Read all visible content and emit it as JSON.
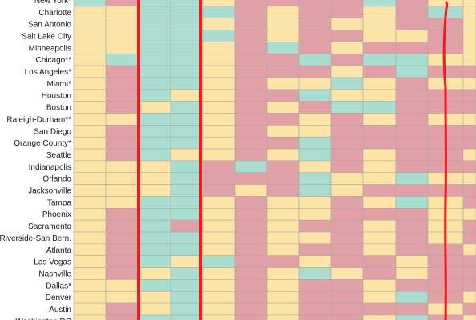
{
  "chart_data": {
    "type": "heatmap",
    "legend": {
      "0": "#fce4a6",
      "1": "#e0a0a6",
      "2": "#a8ddcf"
    },
    "colors": {
      "gridline": "#aaaaaa",
      "annotation": "#ee1c1c"
    },
    "rows": [
      "New York*",
      "Charlotte",
      "San Antonio",
      "Salt Lake City",
      "Minneapolis",
      "Chicago**",
      "Los Angeles*",
      "Miami*",
      "Houston",
      "Boston",
      "Raleigh-Durham**",
      "San Diego",
      "Orange County*",
      "Seattle",
      "Indianapolis",
      "Orlando",
      "Jacksonville",
      "Tampa",
      "Phoenix",
      "Sacramento",
      "Riverside-San Bern.",
      "Atlanta",
      "Las Vegas",
      "Nashville",
      "Dallas*",
      "Denver",
      "Austin",
      "Washington DC"
    ],
    "cells": [
      [
        2,
        1,
        2,
        2,
        0,
        1,
        1,
        1,
        1,
        2,
        1,
        0,
        0
      ],
      [
        0,
        0,
        2,
        2,
        2,
        1,
        0,
        1,
        1,
        0,
        1,
        2,
        0
      ],
      [
        0,
        0,
        2,
        2,
        0,
        1,
        0,
        1,
        0,
        0,
        1,
        1,
        0
      ],
      [
        0,
        0,
        2,
        2,
        2,
        1,
        0,
        1,
        1,
        0,
        0,
        1,
        0
      ],
      [
        0,
        0,
        2,
        2,
        0,
        1,
        2,
        1,
        0,
        1,
        1,
        1,
        0
      ],
      [
        0,
        2,
        2,
        2,
        0,
        1,
        1,
        2,
        1,
        2,
        2,
        0,
        0
      ],
      [
        0,
        1,
        2,
        2,
        0,
        1,
        1,
        1,
        0,
        1,
        2,
        1,
        1
      ],
      [
        0,
        1,
        2,
        2,
        0,
        1,
        0,
        0,
        2,
        0,
        1,
        0,
        0
      ],
      [
        0,
        1,
        2,
        0,
        0,
        1,
        1,
        2,
        0,
        0,
        1,
        1,
        1
      ],
      [
        0,
        1,
        0,
        2,
        0,
        1,
        0,
        1,
        2,
        2,
        1,
        1,
        1
      ],
      [
        0,
        0,
        2,
        2,
        0,
        1,
        1,
        0,
        1,
        0,
        1,
        0,
        0
      ],
      [
        0,
        1,
        2,
        2,
        0,
        1,
        0,
        0,
        1,
        1,
        1,
        1,
        1
      ],
      [
        0,
        1,
        2,
        2,
        0,
        1,
        1,
        2,
        1,
        1,
        1,
        1,
        1
      ],
      [
        0,
        1,
        2,
        0,
        0,
        1,
        0,
        2,
        1,
        0,
        1,
        1,
        0
      ],
      [
        0,
        0,
        0,
        2,
        1,
        2,
        1,
        0,
        1,
        0,
        1,
        1,
        1
      ],
      [
        0,
        0,
        0,
        2,
        1,
        1,
        1,
        2,
        0,
        0,
        2,
        0,
        0
      ],
      [
        0,
        0,
        0,
        2,
        1,
        0,
        1,
        2,
        0,
        1,
        1,
        1,
        1
      ],
      [
        0,
        0,
        2,
        2,
        0,
        1,
        0,
        0,
        1,
        0,
        2,
        0,
        1
      ],
      [
        0,
        1,
        2,
        2,
        0,
        1,
        0,
        0,
        1,
        1,
        1,
        0,
        0
      ],
      [
        0,
        1,
        2,
        1,
        0,
        1,
        0,
        1,
        1,
        0,
        1,
        0,
        1
      ],
      [
        0,
        1,
        2,
        2,
        0,
        1,
        0,
        0,
        1,
        0,
        1,
        0,
        1
      ],
      [
        0,
        1,
        2,
        2,
        0,
        1,
        0,
        1,
        1,
        0,
        1,
        1,
        0
      ],
      [
        0,
        1,
        2,
        0,
        2,
        1,
        1,
        0,
        1,
        1,
        0,
        1,
        1
      ],
      [
        0,
        1,
        0,
        2,
        0,
        1,
        0,
        2,
        0,
        1,
        0,
        1,
        1
      ],
      [
        0,
        0,
        2,
        2,
        0,
        1,
        0,
        1,
        1,
        0,
        1,
        1,
        1
      ],
      [
        0,
        0,
        0,
        2,
        0,
        1,
        0,
        1,
        1,
        0,
        2,
        1,
        0
      ],
      [
        0,
        1,
        0,
        2,
        0,
        1,
        0,
        1,
        1,
        1,
        1,
        0,
        1
      ],
      [
        0,
        1,
        2,
        2,
        0,
        1,
        0,
        1,
        1,
        0,
        2,
        1,
        0
      ]
    ]
  }
}
